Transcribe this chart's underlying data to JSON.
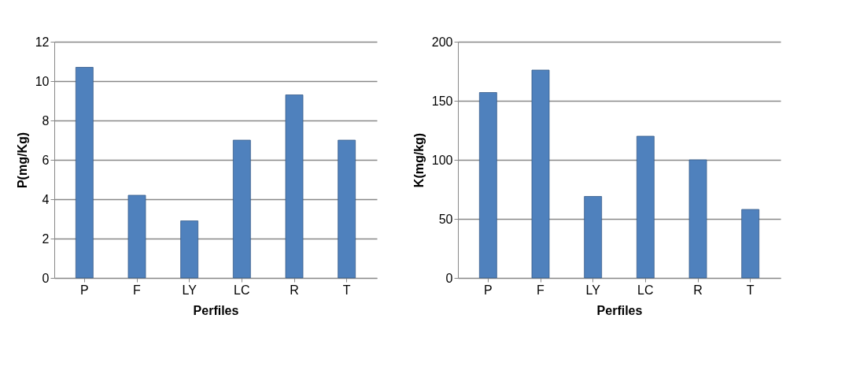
{
  "chart_data": [
    {
      "type": "bar",
      "categories": [
        "P",
        "F",
        "LY",
        "LC",
        "R",
        "T"
      ],
      "xlabel": "Perfiles",
      "ylabel": "P(mg/Kg)",
      "values": [
        10.7,
        4.2,
        2.9,
        7.0,
        9.3,
        7.0
      ],
      "color": "#4f81bd",
      "ylim": [
        0,
        12
      ],
      "yticks": [
        0,
        2,
        4,
        6,
        8,
        10,
        12
      ],
      "grid": "y"
    },
    {
      "type": "bar",
      "categories": [
        "P",
        "F",
        "LY",
        "LC",
        "R",
        "T"
      ],
      "xlabel": "Perfiles",
      "ylabel": "K(mg/kg)",
      "values": [
        157,
        176,
        69,
        120,
        100,
        58
      ],
      "color": "#4f81bd",
      "ylim": [
        0,
        200
      ],
      "yticks": [
        0,
        50,
        100,
        150,
        200
      ],
      "grid": "y"
    }
  ]
}
